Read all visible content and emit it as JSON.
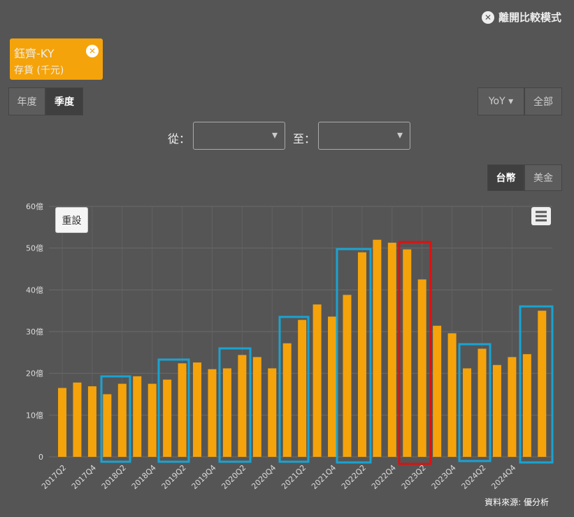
{
  "ui": {
    "exit": "離開比較模式",
    "tag": {
      "name": "鈺齊-KY",
      "metric": "存貨 (千元)"
    },
    "period": [
      "年度",
      "季度"
    ],
    "yoy": "YoY",
    "all": "全部",
    "from": "從：",
    "to": "至：",
    "currency": [
      "台幣",
      "美金"
    ],
    "reset": "重設",
    "source": "資料來源: 優分析"
  },
  "chart_data": {
    "type": "bar",
    "color": "#f5a30a",
    "grid": true,
    "categories": [
      "2017Q2",
      null,
      "2017Q4",
      null,
      "2018Q2",
      null,
      "2018Q4",
      null,
      "2019Q2",
      null,
      "2019Q4",
      null,
      "2020Q2",
      null,
      "2020Q4",
      null,
      "2021Q2",
      null,
      "2021Q4",
      null,
      "2022Q2",
      null,
      "2022Q4",
      null,
      "2023Q2",
      null,
      "2023Q4",
      null,
      "2024Q2",
      null,
      "2024Q4",
      null,
      null
    ],
    "values": [
      16.5,
      17.8,
      16.9,
      15.0,
      17.5,
      19.3,
      17.5,
      18.5,
      22.4,
      22.6,
      21.0,
      21.2,
      24.4,
      23.9,
      21.2,
      27.2,
      32.8,
      36.5,
      33.6,
      38.8,
      49.0,
      52.0,
      51.3,
      49.7,
      42.5,
      31.4,
      29.6,
      21.2,
      25.9,
      22.0,
      23.9,
      24.6,
      35.0
    ],
    "ylim": [
      0,
      60
    ],
    "yticks": [
      {
        "value": 0,
        "label": "0"
      },
      {
        "value": 10,
        "label": "10億"
      },
      {
        "value": 20,
        "label": "20億"
      },
      {
        "value": 30,
        "label": "30億"
      },
      {
        "value": 40,
        "label": "40億"
      },
      {
        "value": 50,
        "label": "50億"
      },
      {
        "value": 60,
        "label": "60億"
      }
    ]
  }
}
